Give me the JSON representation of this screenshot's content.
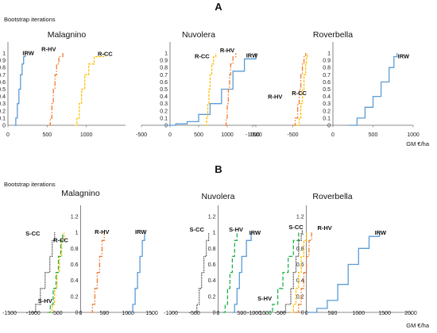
{
  "figure": {
    "panel_a_letter": "A",
    "panel_b_letter": "B",
    "panel_a_ylabel": "Bootstrap iterations",
    "panel_b_ylabel": "Bootstrap iterations",
    "panel_a_xlabel": "GM €/ha",
    "panel_b_xlabel": "GM €/ha"
  },
  "series_styles": {
    "IRW": {
      "color": "#5b9bd5",
      "dash": ""
    },
    "R-HV": {
      "color": "#ed7d31",
      "dash": "6,2,1.5,2"
    },
    "R-CC": {
      "color": "#ffc000",
      "dash": "3,1.5"
    },
    "S-CC": {
      "color": "#222222",
      "dash": "1,1.2"
    },
    "S-HV": {
      "color": "#22b14c",
      "dash": "5,2.5"
    }
  },
  "chart_data": [
    {
      "type": "line",
      "panel": "A",
      "title": "Malagnino",
      "xlim": [
        0,
        1500
      ],
      "xticks": [
        0,
        500,
        1000
      ],
      "ylim": [
        0,
        1
      ],
      "yticks": [
        "0",
        "0.1",
        "0.2",
        "0.3",
        "0.4",
        "0.5",
        "0.6",
        "0.7",
        "0.8",
        "0.9",
        "1"
      ],
      "series": [
        {
          "name": "IRW",
          "x": [
            80,
            100,
            120,
            140,
            160,
            180,
            200,
            220
          ],
          "y": [
            0,
            0.1,
            0.3,
            0.5,
            0.7,
            0.85,
            0.95,
            1
          ]
        },
        {
          "name": "R-HV",
          "x": [
            520,
            540,
            560,
            580,
            600,
            620,
            650,
            700
          ],
          "y": [
            0,
            0.1,
            0.3,
            0.5,
            0.7,
            0.85,
            0.95,
            1
          ]
        },
        {
          "name": "R-CC",
          "x": [
            850,
            880,
            910,
            940,
            980,
            1030,
            1100,
            1220
          ],
          "y": [
            0,
            0.1,
            0.3,
            0.5,
            0.7,
            0.85,
            0.95,
            1
          ]
        }
      ],
      "labels": [
        {
          "text": "IRW",
          "x": 260,
          "y": 0.97
        },
        {
          "text": "R-HV",
          "x": 520,
          "y": 1.03
        },
        {
          "text": "R-CC",
          "x": 1240,
          "y": 0.96
        }
      ]
    },
    {
      "type": "line",
      "panel": "A",
      "title": "Nuvolera",
      "xlim": [
        -500,
        1500
      ],
      "xticks": [
        -500,
        0,
        500,
        1000,
        1500
      ],
      "ylim": [
        0,
        1
      ],
      "yticks": [
        "0",
        "0.1",
        "0.2",
        "0.3",
        "0.4",
        "0.5",
        "0.6",
        "0.7",
        "0.8",
        "0.9",
        "1"
      ],
      "series": [
        {
          "name": "IRW",
          "x": [
            -100,
            100,
            300,
            500,
            700,
            900,
            1100,
            1300,
            1500
          ],
          "y": [
            0,
            0.02,
            0.05,
            0.15,
            0.3,
            0.5,
            0.75,
            0.92,
            1
          ]
        },
        {
          "name": "R-HV",
          "x": [
            950,
            980,
            1000,
            1020,
            1040,
            1060,
            1100,
            1150
          ],
          "y": [
            0,
            0.1,
            0.3,
            0.5,
            0.7,
            0.85,
            0.95,
            1
          ]
        },
        {
          "name": "R-CC",
          "x": [
            620,
            640,
            660,
            680,
            700,
            730,
            760,
            800
          ],
          "y": [
            0,
            0.1,
            0.3,
            0.5,
            0.7,
            0.85,
            0.95,
            1
          ]
        }
      ],
      "labels": [
        {
          "text": "R-CC",
          "x": 560,
          "y": 0.93
        },
        {
          "text": "R-HV",
          "x": 1000,
          "y": 1.01
        },
        {
          "text": "IRW",
          "x": 1430,
          "y": 0.94
        }
      ]
    },
    {
      "type": "line",
      "panel": "A",
      "title": "Roverbella",
      "xlim": [
        -1000,
        1000
      ],
      "xticks": [
        -1000,
        -500,
        0,
        500,
        1000
      ],
      "ylim": [
        0,
        1
      ],
      "yticks": [
        "0",
        "0.1",
        "0.2",
        "0.3",
        "0.4",
        "0.5",
        "0.6",
        "0.7",
        "0.8",
        "0.9",
        "1"
      ],
      "series": [
        {
          "name": "IRW",
          "x": [
            200,
            300,
            400,
            500,
            600,
            700,
            760,
            800
          ],
          "y": [
            0,
            0.1,
            0.25,
            0.4,
            0.6,
            0.8,
            0.95,
            1
          ]
        },
        {
          "name": "R-HV",
          "x": [
            -500,
            -470,
            -440,
            -420,
            -400,
            -380,
            -360,
            -340
          ],
          "y": [
            0,
            0.1,
            0.3,
            0.5,
            0.7,
            0.85,
            0.95,
            1
          ]
        },
        {
          "name": "R-CC",
          "x": [
            -450,
            -420,
            -400,
            -380,
            -360,
            -340,
            -330,
            -320
          ],
          "y": [
            0,
            0.1,
            0.3,
            0.5,
            0.7,
            0.85,
            0.95,
            1
          ]
        }
      ],
      "labels": [
        {
          "text": "IRW",
          "x": 880,
          "y": 0.93
        },
        {
          "text": "R-HV",
          "x": -720,
          "y": 0.37
        },
        {
          "text": "R-CC",
          "x": -420,
          "y": 0.42
        }
      ]
    },
    {
      "type": "line",
      "panel": "B",
      "title": "Malagnino",
      "xlim": [
        -1500,
        1500
      ],
      "xticks": [
        -1500,
        -1000,
        -500,
        0,
        500,
        1000,
        1500
      ],
      "ylim": [
        0,
        1.2
      ],
      "yticks": [
        "0",
        "0.2",
        "0.4",
        "0.6",
        "0.8",
        "1",
        "1.2"
      ],
      "series": [
        {
          "name": "IRW",
          "x": [
            1050,
            1100,
            1150,
            1200,
            1250,
            1300,
            1350
          ],
          "y": [
            0,
            0.1,
            0.3,
            0.5,
            0.7,
            0.9,
            1
          ]
        },
        {
          "name": "R-HV",
          "x": [
            200,
            250,
            300,
            350,
            400,
            450,
            500
          ],
          "y": [
            0,
            0.1,
            0.3,
            0.5,
            0.7,
            0.9,
            1
          ]
        },
        {
          "name": "R-CC",
          "x": [
            -650,
            -600,
            -550,
            -500,
            -450,
            -400,
            -350
          ],
          "y": [
            0,
            0.1,
            0.3,
            0.5,
            0.7,
            0.9,
            1
          ]
        },
        {
          "name": "S-CC",
          "x": [
            -1050,
            -950,
            -850,
            -750,
            -650,
            -600,
            -550
          ],
          "y": [
            0,
            0.1,
            0.3,
            0.5,
            0.7,
            0.9,
            1
          ]
        },
        {
          "name": "S-HV",
          "x": [
            -700,
            -640,
            -580,
            -520,
            -470,
            -420,
            -380
          ],
          "y": [
            0,
            0.1,
            0.3,
            0.5,
            0.7,
            0.9,
            1
          ]
        }
      ],
      "labels": [
        {
          "text": "S-CC",
          "x": -1010,
          "y": 0.96
        },
        {
          "text": "R-CC",
          "x": -420,
          "y": 0.88
        },
        {
          "text": "S-HV",
          "x": -750,
          "y": 0.12
        },
        {
          "text": "R-HV",
          "x": 450,
          "y": 0.98
        },
        {
          "text": "IRW",
          "x": 1270,
          "y": 0.98
        }
      ]
    },
    {
      "type": "line",
      "panel": "B",
      "title": "Nuvolera",
      "xlim": [
        -1000,
        1000
      ],
      "xticks": [
        -1000,
        -500,
        0,
        500,
        1000
      ],
      "ylim": [
        0,
        1.2
      ],
      "yticks": [
        "0",
        "0.2",
        "0.4",
        "0.6",
        "0.8",
        "1",
        "1.2"
      ],
      "series": [
        {
          "name": "S-CC",
          "x": [
            -500,
            -450,
            -400,
            -350,
            -300,
            -250,
            -200
          ],
          "y": [
            0,
            0.1,
            0.3,
            0.5,
            0.7,
            0.9,
            1
          ]
        },
        {
          "name": "S-HV",
          "x": [
            100,
            150,
            200,
            250,
            300,
            350,
            400
          ],
          "y": [
            0,
            0.1,
            0.3,
            0.5,
            0.7,
            0.9,
            1
          ]
        },
        {
          "name": "IRW",
          "x": [
            300,
            350,
            400,
            450,
            500,
            600,
            700
          ],
          "y": [
            0,
            0.1,
            0.3,
            0.5,
            0.7,
            0.9,
            1
          ]
        }
      ],
      "labels": [
        {
          "text": "S-CC",
          "x": -450,
          "y": 1.01
        },
        {
          "text": "S-HV",
          "x": 380,
          "y": 1.01
        },
        {
          "text": "IRW",
          "x": 780,
          "y": 0.97
        }
      ]
    },
    {
      "type": "line",
      "panel": "B",
      "title": "Roverbella",
      "xlim": [
        -1000,
        2000
      ],
      "xticks": [
        -1000,
        -500,
        0,
        500,
        1000,
        1500,
        2000
      ],
      "ylim": [
        0,
        1.2
      ],
      "yticks": [
        "0",
        "0.2",
        "0.4",
        "0.6",
        "0.8",
        "1",
        "1.2"
      ],
      "series": [
        {
          "name": "IRW",
          "x": [
            0,
            200,
            400,
            600,
            800,
            1000,
            1200,
            1400
          ],
          "y": [
            0,
            0.05,
            0.15,
            0.35,
            0.6,
            0.8,
            0.95,
            1
          ]
        },
        {
          "name": "R-HV",
          "x": [
            -200,
            -150,
            -100,
            -50,
            0,
            50,
            100
          ],
          "y": [
            0,
            0.1,
            0.3,
            0.5,
            0.7,
            0.9,
            1
          ]
        },
        {
          "name": "R-CC",
          "x": [
            -300,
            -250,
            -200,
            -150,
            -100,
            -50,
            0
          ],
          "y": [
            0,
            0.1,
            0.3,
            0.5,
            0.7,
            0.9,
            1
          ]
        },
        {
          "name": "S-CC",
          "x": [
            -500,
            -400,
            -300,
            -250,
            -200,
            -150,
            -100
          ],
          "y": [
            0,
            0.1,
            0.3,
            0.5,
            0.7,
            0.9,
            1
          ]
        },
        {
          "name": "S-HV",
          "x": [
            -750,
            -650,
            -550,
            -450,
            -350,
            -250,
            -150
          ],
          "y": [
            0,
            0.1,
            0.3,
            0.5,
            0.7,
            0.9,
            1
          ]
        }
      ],
      "labels": [
        {
          "text": "S-CC",
          "x": -200,
          "y": 1.04
        },
        {
          "text": "R-HV",
          "x": 350,
          "y": 1.03
        },
        {
          "text": "IRW",
          "x": 1420,
          "y": 0.97
        },
        {
          "text": "S-HV",
          "x": -800,
          "y": 0.15
        }
      ]
    }
  ]
}
